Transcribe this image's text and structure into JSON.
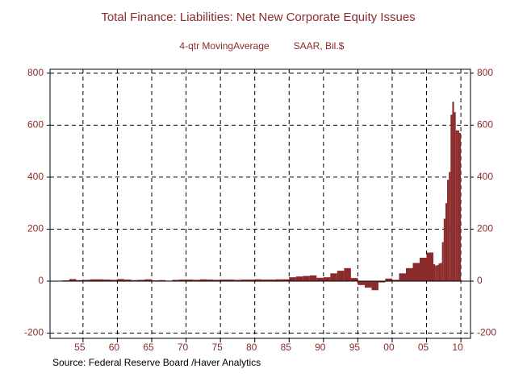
{
  "chart_data": {
    "type": "bar",
    "title": "Total Finance: Liabilities: Net New Corporate Equity Issues",
    "subtitle": "4-qtr MovingAverage",
    "units": "SAAR, Bil.$",
    "source": "Source:  Federal Reserve Board /Haver Analytics",
    "color": "#8b2a2a",
    "x": [
      1952,
      1953,
      1954,
      1955,
      1956,
      1957,
      1958,
      1959,
      1960,
      1961,
      1962,
      1963,
      1964,
      1965,
      1966,
      1967,
      1968,
      1969,
      1970,
      1971,
      1972,
      1973,
      1974,
      1975,
      1976,
      1977,
      1978,
      1979,
      1980,
      1981,
      1982,
      1983,
      1984,
      1985,
      1986,
      1987,
      1988,
      1989,
      1990,
      1991,
      1992,
      1993,
      1994,
      1995,
      1996,
      1997,
      1998,
      1999,
      2000,
      2001,
      2002,
      2003,
      2004,
      2005,
      2006,
      2006.25,
      2006.5,
      2006.75,
      2007,
      2007.25,
      2007.5,
      2007.75,
      2008,
      2008.25,
      2008.5,
      2008.75,
      2009,
      2009.25,
      2009.5,
      2009.75
    ],
    "values": [
      3,
      8,
      4,
      5,
      7,
      7,
      6,
      5,
      8,
      6,
      4,
      5,
      7,
      3,
      4,
      2,
      5,
      6,
      6,
      5,
      7,
      6,
      5,
      6,
      6,
      5,
      6,
      6,
      7,
      6,
      6,
      7,
      7,
      15,
      18,
      20,
      22,
      13,
      15,
      30,
      40,
      50,
      12,
      -15,
      -25,
      -35,
      -5,
      10,
      5,
      30,
      50,
      70,
      90,
      110,
      65,
      60,
      62,
      68,
      70,
      150,
      240,
      300,
      390,
      420,
      640,
      690,
      650,
      580,
      580,
      570
    ],
    "xlim": [
      1950.2,
      2011.4
    ],
    "ylim": [
      -220,
      815
    ],
    "yticks": [
      -200,
      0,
      200,
      400,
      600,
      800
    ],
    "xticks": [
      {
        "value": 1955,
        "label": "55"
      },
      {
        "value": 1960,
        "label": "60"
      },
      {
        "value": 1965,
        "label": "65"
      },
      {
        "value": 1970,
        "label": "70"
      },
      {
        "value": 1975,
        "label": "75"
      },
      {
        "value": 1980,
        "label": "80"
      },
      {
        "value": 1985,
        "label": "85"
      },
      {
        "value": 1990,
        "label": "90"
      },
      {
        "value": 1995,
        "label": "95"
      },
      {
        "value": 2000,
        "label": "00"
      },
      {
        "value": 2005,
        "label": "05"
      },
      {
        "value": 2010,
        "label": "10"
      }
    ],
    "grid": true
  }
}
